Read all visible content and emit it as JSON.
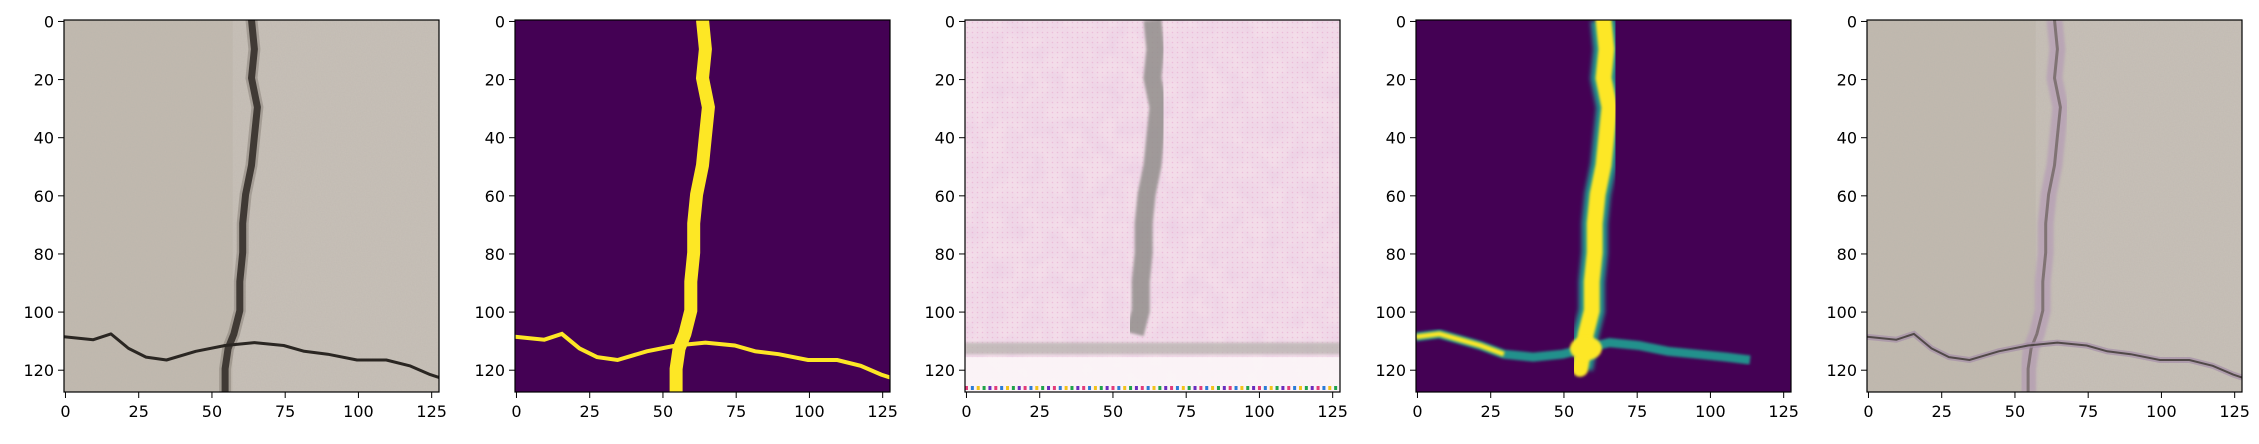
{
  "figure": {
    "panel_count": 5,
    "axis": {
      "x_ticks": [
        "0",
        "25",
        "50",
        "75",
        "100",
        "125"
      ],
      "x_tick_values": [
        0,
        25,
        50,
        75,
        100,
        125
      ],
      "y_ticks": [
        "0",
        "20",
        "40",
        "60",
        "80",
        "100",
        "120"
      ],
      "y_tick_values": [
        0,
        20,
        40,
        60,
        80,
        100,
        120
      ],
      "range": [
        0,
        128
      ]
    },
    "panels": [
      {
        "name": "panel-original-image",
        "kind": "photo",
        "description": "concrete surface with crack"
      },
      {
        "name": "panel-ground-truth-mask",
        "kind": "mask",
        "description": "binary crack mask"
      },
      {
        "name": "panel-generated-image",
        "kind": "synthetic",
        "description": "reconstructed pinkish texture"
      },
      {
        "name": "panel-predicted-mask",
        "kind": "mask-soft",
        "description": "predicted crack probability"
      },
      {
        "name": "panel-overlay-image",
        "kind": "overlay",
        "description": "photo with crack overlay"
      }
    ],
    "colors": {
      "mask_background": "#440154",
      "mask_foreground": "#fde725",
      "mask_mid": "#21918c",
      "concrete": "#c9c1b7",
      "pink_texture": "#f3dde9"
    }
  }
}
